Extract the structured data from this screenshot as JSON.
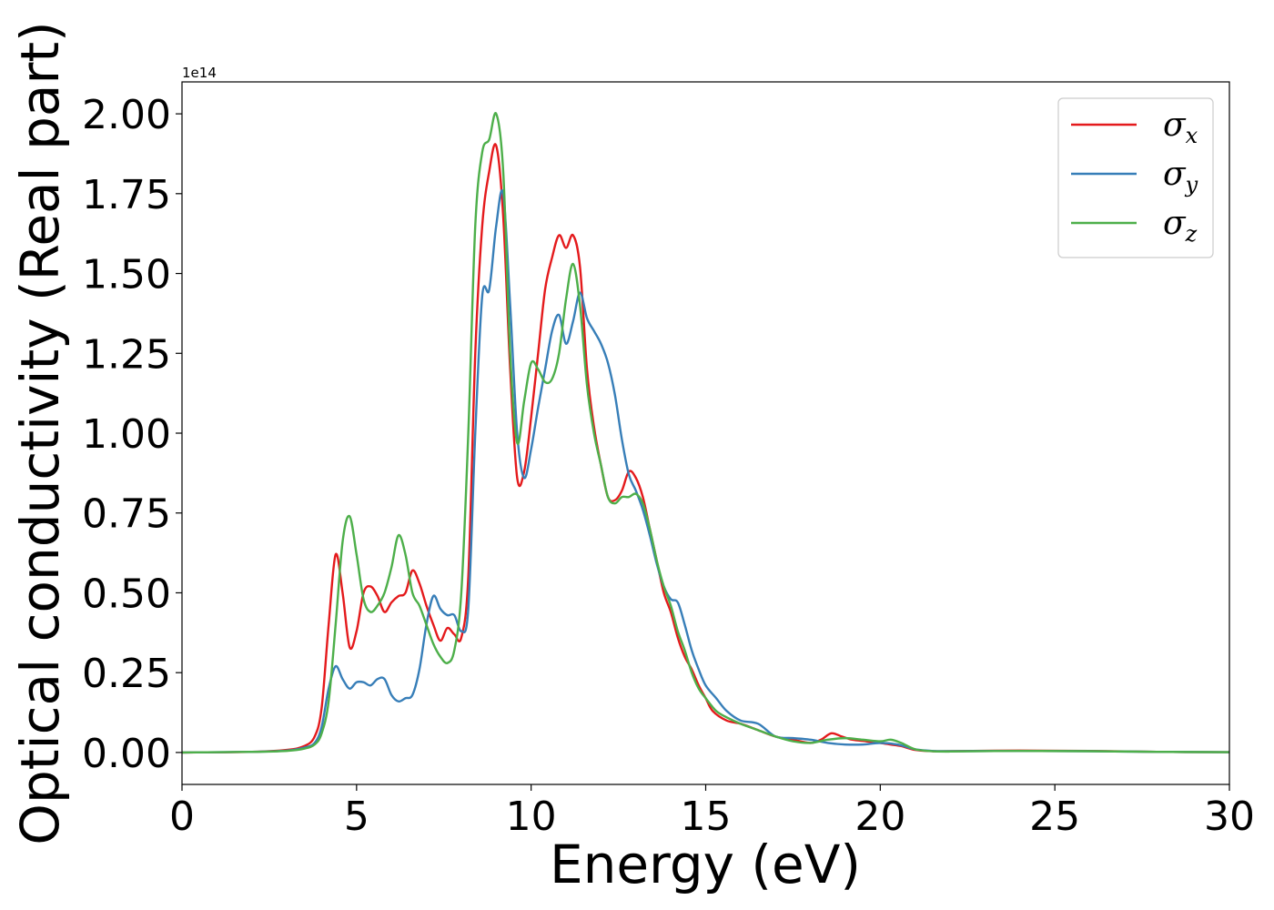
{
  "chart_data": {
    "type": "line",
    "title": "",
    "xlabel": "Energy (eV)",
    "ylabel": "Optical conductivity (Real part)",
    "y_offset_text": "1e14",
    "xlim": [
      0,
      30
    ],
    "ylim": [
      -0.1,
      2.1
    ],
    "x_ticks": [
      0,
      5,
      10,
      15,
      20,
      25,
      30
    ],
    "x_tick_labels": [
      "0",
      "5",
      "10",
      "15",
      "20",
      "25",
      "30"
    ],
    "y_ticks": [
      0.0,
      0.25,
      0.5,
      0.75,
      1.0,
      1.25,
      1.5,
      1.75,
      2.0
    ],
    "y_tick_labels": [
      "0.00",
      "0.25",
      "0.50",
      "0.75",
      "1.00",
      "1.25",
      "1.50",
      "1.75",
      "2.00"
    ],
    "grid": false,
    "legend_position": "top-right",
    "series": [
      {
        "name": "σx",
        "symbol": "σ",
        "subscript": "x",
        "color": "#e41a1c",
        "x": [
          0,
          2,
          3,
          3.5,
          3.8,
          4.0,
          4.2,
          4.4,
          4.6,
          4.8,
          5.0,
          5.2,
          5.4,
          5.6,
          5.8,
          6.0,
          6.2,
          6.4,
          6.6,
          6.8,
          7.0,
          7.2,
          7.4,
          7.6,
          7.8,
          8.0,
          8.2,
          8.4,
          8.6,
          8.8,
          9.0,
          9.2,
          9.4,
          9.6,
          9.8,
          10.0,
          10.2,
          10.4,
          10.6,
          10.8,
          11.0,
          11.2,
          11.4,
          11.6,
          11.8,
          12.0,
          12.2,
          12.4,
          12.6,
          12.8,
          13.0,
          13.2,
          13.4,
          13.6,
          13.8,
          14.0,
          14.2,
          14.4,
          14.6,
          14.8,
          15.0,
          15.2,
          15.6,
          16.0,
          16.5,
          17.0,
          17.5,
          18.0,
          18.3,
          18.6,
          18.9,
          19.2,
          19.6,
          20.0,
          20.3,
          20.6,
          21.0,
          21.5,
          22,
          24,
          26,
          28,
          30
        ],
        "y": [
          0,
          0.002,
          0.008,
          0.02,
          0.05,
          0.14,
          0.4,
          0.62,
          0.5,
          0.33,
          0.38,
          0.5,
          0.52,
          0.49,
          0.44,
          0.47,
          0.49,
          0.5,
          0.57,
          0.53,
          0.46,
          0.4,
          0.35,
          0.39,
          0.37,
          0.36,
          0.55,
          1.25,
          1.65,
          1.82,
          1.9,
          1.68,
          1.2,
          0.86,
          0.88,
          1.05,
          1.25,
          1.45,
          1.55,
          1.62,
          1.58,
          1.62,
          1.52,
          1.2,
          1.02,
          0.9,
          0.8,
          0.79,
          0.82,
          0.88,
          0.86,
          0.8,
          0.7,
          0.6,
          0.5,
          0.44,
          0.36,
          0.3,
          0.26,
          0.21,
          0.17,
          0.13,
          0.1,
          0.09,
          0.07,
          0.05,
          0.04,
          0.03,
          0.04,
          0.06,
          0.05,
          0.04,
          0.035,
          0.03,
          0.025,
          0.02,
          0.008,
          0.004,
          0.004,
          0.006,
          0.005,
          0.002,
          0.001
        ]
      },
      {
        "name": "σy",
        "symbol": "σ",
        "subscript": "y",
        "color": "#377eb8",
        "x": [
          0,
          2,
          3,
          3.5,
          3.8,
          4.0,
          4.2,
          4.4,
          4.6,
          4.8,
          5.0,
          5.2,
          5.4,
          5.6,
          5.8,
          6.0,
          6.2,
          6.4,
          6.6,
          6.8,
          7.0,
          7.2,
          7.4,
          7.6,
          7.8,
          8.0,
          8.2,
          8.4,
          8.6,
          8.8,
          9.0,
          9.2,
          9.4,
          9.6,
          9.8,
          10.0,
          10.2,
          10.4,
          10.6,
          10.8,
          11.0,
          11.2,
          11.4,
          11.6,
          11.8,
          12.0,
          12.2,
          12.4,
          12.6,
          12.8,
          13.0,
          13.2,
          13.4,
          13.6,
          13.8,
          14.0,
          14.2,
          14.4,
          14.6,
          14.8,
          15.0,
          15.3,
          15.6,
          16.0,
          16.5,
          17.0,
          17.5,
          18.0,
          18.5,
          19.0,
          19.5,
          20.0,
          20.5,
          21.0,
          21.5,
          22,
          24,
          26,
          28,
          30
        ],
        "y": [
          0,
          0.002,
          0.006,
          0.015,
          0.03,
          0.08,
          0.2,
          0.27,
          0.23,
          0.2,
          0.22,
          0.22,
          0.21,
          0.23,
          0.23,
          0.18,
          0.16,
          0.17,
          0.18,
          0.26,
          0.4,
          0.49,
          0.45,
          0.43,
          0.43,
          0.38,
          0.45,
          1.0,
          1.43,
          1.45,
          1.65,
          1.75,
          1.4,
          1.0,
          0.86,
          0.95,
          1.08,
          1.2,
          1.32,
          1.37,
          1.28,
          1.35,
          1.44,
          1.36,
          1.32,
          1.28,
          1.22,
          1.12,
          0.98,
          0.87,
          0.82,
          0.76,
          0.68,
          0.59,
          0.52,
          0.48,
          0.47,
          0.4,
          0.32,
          0.26,
          0.21,
          0.17,
          0.13,
          0.1,
          0.09,
          0.05,
          0.045,
          0.04,
          0.03,
          0.025,
          0.025,
          0.03,
          0.025,
          0.01,
          0.005,
          0.004,
          0.005,
          0.004,
          0.002,
          0.001
        ]
      },
      {
        "name": "σz",
        "symbol": "σ",
        "subscript": "z",
        "color": "#4daf4a",
        "x": [
          0,
          2,
          3,
          3.5,
          3.8,
          4.0,
          4.2,
          4.4,
          4.6,
          4.8,
          5.0,
          5.2,
          5.4,
          5.6,
          5.8,
          6.0,
          6.2,
          6.4,
          6.6,
          6.8,
          7.0,
          7.2,
          7.4,
          7.6,
          7.8,
          8.0,
          8.2,
          8.4,
          8.6,
          8.8,
          9.0,
          9.2,
          9.4,
          9.6,
          9.8,
          10.0,
          10.2,
          10.4,
          10.6,
          10.8,
          11.0,
          11.2,
          11.4,
          11.6,
          11.8,
          12.0,
          12.2,
          12.4,
          12.6,
          12.8,
          13.0,
          13.2,
          13.4,
          13.6,
          13.8,
          14.0,
          14.2,
          14.4,
          14.6,
          14.8,
          15.0,
          15.3,
          15.6,
          16.0,
          16.5,
          17.0,
          17.5,
          18.0,
          18.5,
          19.0,
          19.5,
          20.0,
          20.3,
          20.6,
          21.0,
          21.5,
          22,
          24,
          26,
          28,
          30
        ],
        "y": [
          0,
          0.002,
          0.005,
          0.012,
          0.025,
          0.06,
          0.16,
          0.4,
          0.66,
          0.74,
          0.62,
          0.48,
          0.44,
          0.46,
          0.5,
          0.58,
          0.68,
          0.62,
          0.5,
          0.46,
          0.4,
          0.34,
          0.3,
          0.28,
          0.32,
          0.5,
          1.0,
          1.65,
          1.88,
          1.92,
          2.0,
          1.82,
          1.25,
          0.97,
          1.1,
          1.22,
          1.2,
          1.16,
          1.17,
          1.25,
          1.42,
          1.53,
          1.4,
          1.15,
          1.0,
          0.9,
          0.8,
          0.78,
          0.8,
          0.8,
          0.81,
          0.78,
          0.7,
          0.6,
          0.52,
          0.46,
          0.38,
          0.32,
          0.25,
          0.2,
          0.17,
          0.13,
          0.11,
          0.09,
          0.07,
          0.05,
          0.035,
          0.03,
          0.04,
          0.045,
          0.04,
          0.035,
          0.04,
          0.03,
          0.01,
          0.004,
          0.003,
          0.005,
          0.004,
          0.002,
          0.001
        ]
      }
    ]
  }
}
